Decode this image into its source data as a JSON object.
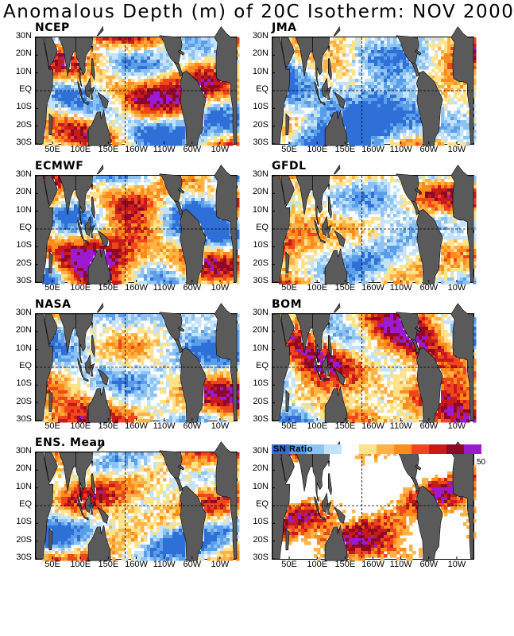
{
  "title": "Anomalous Depth (m) of 20C Isotherm: NOV 2000",
  "lat_labels": [
    "30N",
    "20N",
    "10N",
    "EQ",
    "10S",
    "20S",
    "30S"
  ],
  "lon_labels": [
    "50E",
    "100E",
    "150E",
    "160W",
    "110W",
    "60W",
    "10W"
  ],
  "panels": [
    {
      "label": "NCEP",
      "seed": 11
    },
    {
      "label": "JMA",
      "seed": 23
    },
    {
      "label": "ECMWF",
      "seed": 37
    },
    {
      "label": "GFDL",
      "seed": 41
    },
    {
      "label": "NASA",
      "seed": 53
    },
    {
      "label": "BOM",
      "seed": 67
    },
    {
      "label": "ENS. Mean",
      "seed": 79
    },
    {
      "label": "",
      "seed": 97,
      "snr": true
    }
  ],
  "legend": {
    "title": "SN Ratio",
    "max_label": "50",
    "colors": [
      "#2f6fd8",
      "#5a9de8",
      "#8cc3f2",
      "#c4e3fa",
      "#ffffff",
      "#ffe28a",
      "#ffb347",
      "#ff8c1a",
      "#f0461e",
      "#c81a1a",
      "#8c0a28",
      "#9c1ad0"
    ]
  },
  "colors": {
    "land": "#5a5a5a",
    "ocean": "#ffffff",
    "anom_palette": [
      "#2f6fd8",
      "#5a9de8",
      "#8cc3f2",
      "#c4e3fa",
      "#ffffff",
      "#ffe28a",
      "#ffb347",
      "#ff8c1a",
      "#f0461e",
      "#c81a1a",
      "#8c0a28",
      "#9c1ad0"
    ]
  }
}
